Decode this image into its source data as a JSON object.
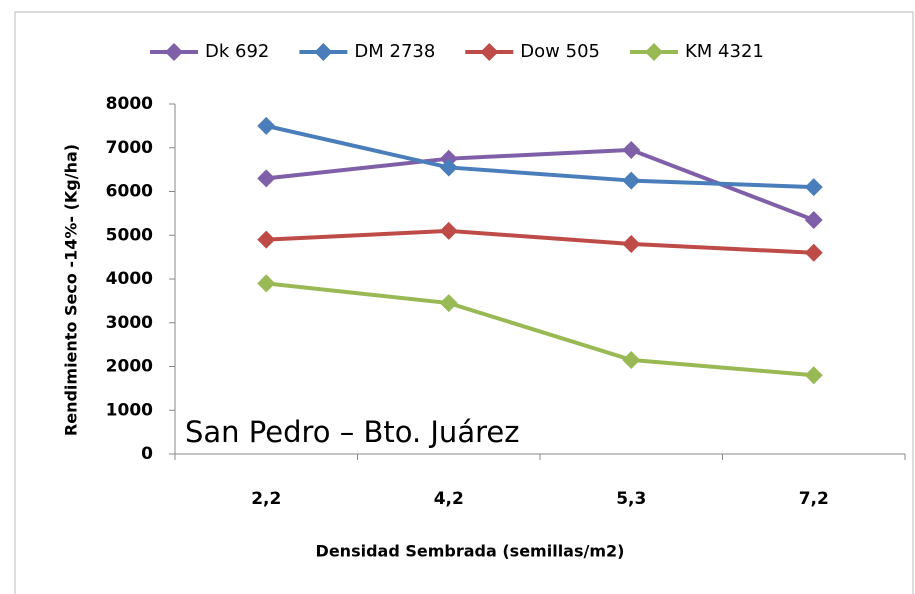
{
  "chart_data": {
    "type": "line",
    "xlabel": "Densidad Sembrada (semillas/m2)",
    "ylabel": "Rendimiento Seco -14%- (Kg/ha)",
    "annotation": "San Pedro – Bto. Juárez",
    "categories": [
      "2,2",
      "4,2",
      "5,3",
      "7,2"
    ],
    "series": [
      {
        "name": "Dk 692",
        "color": "#7f5fa8",
        "values": [
          6300,
          6750,
          6950,
          5350
        ]
      },
      {
        "name": "DM 2738",
        "color": "#4a7ebb",
        "values": [
          7500,
          6550,
          6250,
          6100
        ]
      },
      {
        "name": "Dow 505",
        "color": "#be4b48",
        "values": [
          4900,
          5100,
          4800,
          4600
        ]
      },
      {
        "name": "KM 4321",
        "color": "#98b954",
        "values": [
          3900,
          3450,
          2150,
          1800
        ]
      }
    ],
    "ylim": [
      0,
      8000
    ],
    "yticks": [
      0,
      1000,
      2000,
      3000,
      4000,
      5000,
      6000,
      7000,
      8000
    ],
    "legend": "top"
  }
}
